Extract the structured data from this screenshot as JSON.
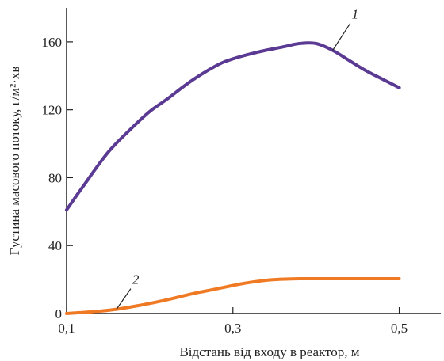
{
  "chart_data": {
    "type": "line",
    "xlabel": "Відстань від входу в реактор, м",
    "ylabel": "Густина масового потоку, г/м²·хв",
    "xlim": [
      0.1,
      0.55
    ],
    "ylim": [
      0,
      180
    ],
    "x_ticks": [
      0.1,
      0.3,
      0.5
    ],
    "x_tick_labels": [
      "0,1",
      "0,3",
      "0,5"
    ],
    "y_ticks": [
      0,
      40,
      80,
      120,
      160
    ],
    "y_tick_labels": [
      "0",
      "40",
      "80",
      "120",
      "160"
    ],
    "grid": false,
    "series": [
      {
        "name": "1",
        "color": "#5b3a93",
        "x": [
          0.1,
          0.12,
          0.15,
          0.18,
          0.2,
          0.22,
          0.25,
          0.28,
          0.3,
          0.33,
          0.36,
          0.38,
          0.4,
          0.42,
          0.44,
          0.46,
          0.48,
          0.5
        ],
        "y": [
          61,
          75,
          95,
          110,
          119,
          126,
          137,
          146,
          150,
          154,
          157,
          159,
          159,
          155,
          149,
          143,
          138,
          133
        ]
      },
      {
        "name": "2",
        "color": "#f07a24",
        "x": [
          0.1,
          0.13,
          0.16,
          0.19,
          0.22,
          0.25,
          0.28,
          0.31,
          0.33,
          0.35,
          0.38,
          0.4,
          0.45,
          0.5
        ],
        "y": [
          0,
          1,
          2.5,
          5,
          8,
          11.5,
          14.5,
          17.5,
          19,
          20,
          20.5,
          20.5,
          20.5,
          20.5
        ]
      }
    ]
  }
}
